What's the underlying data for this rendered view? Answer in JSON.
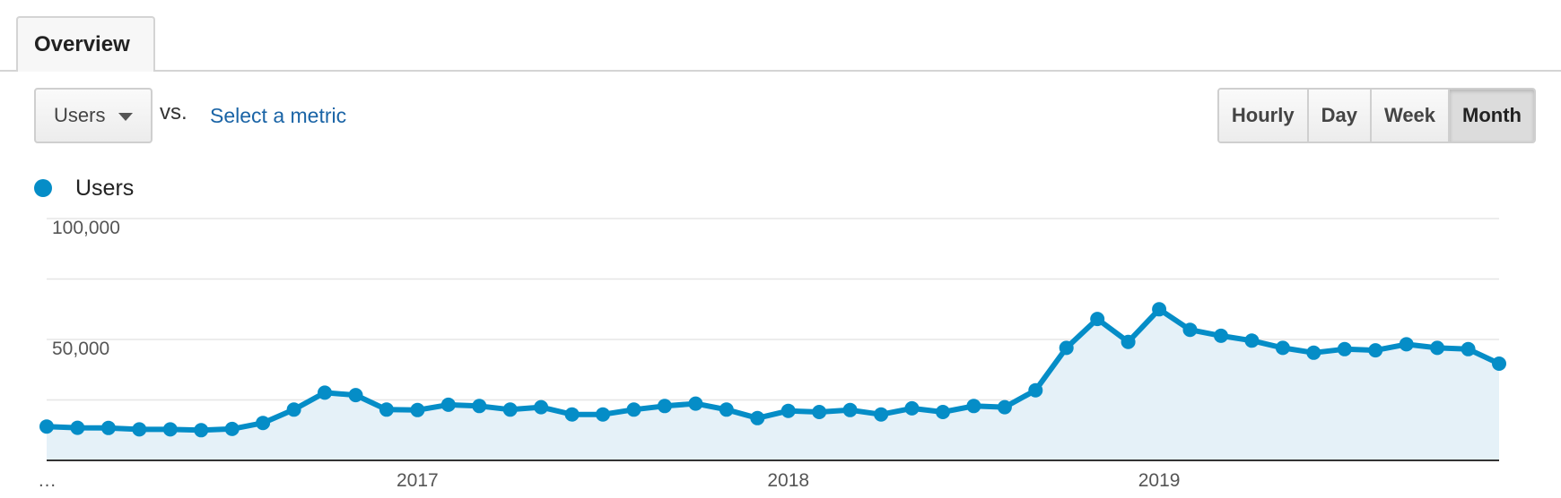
{
  "tabs": [
    {
      "label": "Overview"
    }
  ],
  "toolbar": {
    "metric_selected": "Users",
    "vs_text": "vs.",
    "select_metric_link": "Select a metric",
    "granularity": [
      {
        "label": "Hourly",
        "active": false
      },
      {
        "label": "Day",
        "active": false
      },
      {
        "label": "Week",
        "active": false
      },
      {
        "label": "Month",
        "active": true
      }
    ]
  },
  "legend": {
    "series_name": "Users",
    "color": "#058dc7"
  },
  "chart_data": {
    "type": "area",
    "series": [
      {
        "name": "Users",
        "color": "#058dc7",
        "x": [
          "2016-01",
          "2016-02",
          "2016-03",
          "2016-04",
          "2016-05",
          "2016-06",
          "2016-07",
          "2016-08",
          "2016-09",
          "2016-10",
          "2016-11",
          "2016-12",
          "2017-01",
          "2017-02",
          "2017-03",
          "2017-04",
          "2017-05",
          "2017-06",
          "2017-07",
          "2017-08",
          "2017-09",
          "2017-10",
          "2017-11",
          "2017-12",
          "2018-01",
          "2018-02",
          "2018-03",
          "2018-04",
          "2018-05",
          "2018-06",
          "2018-07",
          "2018-08",
          "2018-09",
          "2018-10",
          "2018-11",
          "2018-12",
          "2019-01",
          "2019-02",
          "2019-03",
          "2019-04",
          "2019-05",
          "2019-06",
          "2019-07",
          "2019-08",
          "2019-09",
          "2019-10",
          "2019-11",
          "2019-12"
        ],
        "values": [
          14000,
          13500,
          13400,
          12800,
          12800,
          12500,
          13000,
          15500,
          21000,
          28000,
          27000,
          21000,
          20800,
          23000,
          22500,
          21000,
          22000,
          19000,
          19000,
          21000,
          22500,
          23500,
          21000,
          17500,
          20500,
          20000,
          20800,
          19000,
          21500,
          20000,
          22500,
          22000,
          29000,
          46500,
          58500,
          49000,
          62500,
          54000,
          51500,
          49500,
          46500,
          44500,
          46000,
          45500,
          48000,
          46500,
          46000,
          40000
        ]
      }
    ],
    "yticks": [
      {
        "value": 100000,
        "label": "100,000"
      },
      {
        "value": 50000,
        "label": "50,000"
      }
    ],
    "xticks": [
      {
        "value": "…",
        "index": 0
      },
      {
        "value": "2017",
        "index": 12
      },
      {
        "value": "2018",
        "index": 24
      },
      {
        "value": "2019",
        "index": 36
      }
    ],
    "ylim": [
      0,
      100000
    ],
    "grid": true,
    "legend_position": "top-left"
  }
}
